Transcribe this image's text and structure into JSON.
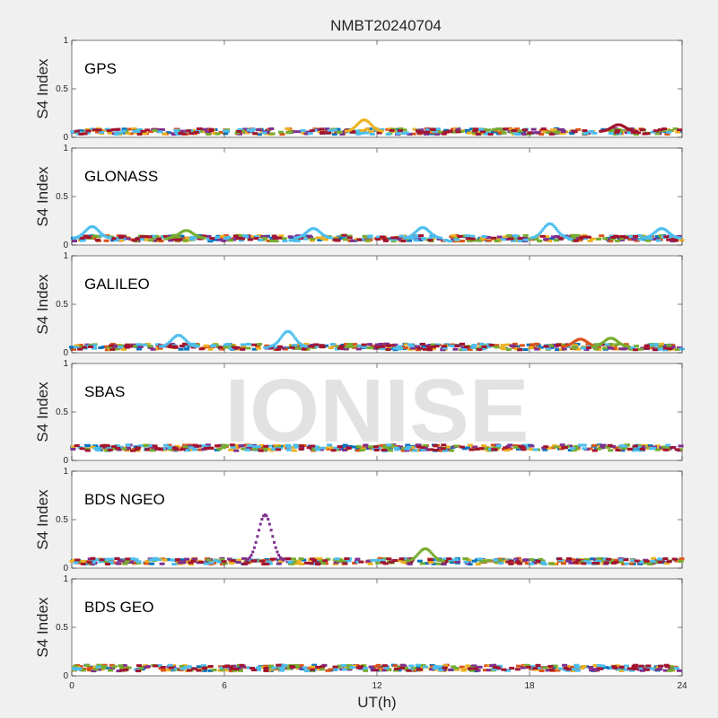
{
  "chart_data": {
    "type": "scatter",
    "title": "NMBT20240704",
    "xlabel": "UT(h)",
    "ylabel": "S4 Index",
    "xlim": [
      0,
      24
    ],
    "ylim": [
      0,
      1
    ],
    "xticks": [
      "0",
      "6",
      "12",
      "18",
      "24"
    ],
    "yticks": [
      "0",
      "0.5",
      "1"
    ],
    "watermark": "IONISE",
    "series_colors": [
      "#0072BD",
      "#D95319",
      "#EDB120",
      "#7E2F8E",
      "#77AC30",
      "#4DBEEE",
      "#A2142F"
    ],
    "panels": [
      {
        "label": "GPS",
        "baseline": 0.06,
        "features": [
          {
            "x": 11.5,
            "y": 0.18,
            "color_index": 2
          },
          {
            "x": 21.5,
            "y": 0.13,
            "color_index": 6
          }
        ]
      },
      {
        "label": "GLONASS",
        "baseline": 0.07,
        "features": [
          {
            "x": 0.8,
            "y": 0.19,
            "color_index": 5
          },
          {
            "x": 4.5,
            "y": 0.15,
            "color_index": 4
          },
          {
            "x": 9.5,
            "y": 0.17,
            "color_index": 5
          },
          {
            "x": 13.8,
            "y": 0.18,
            "color_index": 5
          },
          {
            "x": 18.8,
            "y": 0.22,
            "color_index": 5
          },
          {
            "x": 23.2,
            "y": 0.17,
            "color_index": 5
          }
        ]
      },
      {
        "label": "GALILEO",
        "baseline": 0.06,
        "features": [
          {
            "x": 4.2,
            "y": 0.18,
            "color_index": 5
          },
          {
            "x": 8.5,
            "y": 0.22,
            "color_index": 5
          },
          {
            "x": 20.0,
            "y": 0.14,
            "color_index": 1
          },
          {
            "x": 21.2,
            "y": 0.15,
            "color_index": 4
          }
        ]
      },
      {
        "label": "SBAS",
        "baseline": 0.13,
        "features": []
      },
      {
        "label": "BDS NGEO",
        "baseline": 0.07,
        "features": [
          {
            "x": 7.6,
            "y": 0.55,
            "color_index": 3
          },
          {
            "x": 13.9,
            "y": 0.2,
            "color_index": 4
          }
        ]
      },
      {
        "label": "BDS GEO",
        "baseline": 0.08,
        "features": []
      }
    ]
  }
}
